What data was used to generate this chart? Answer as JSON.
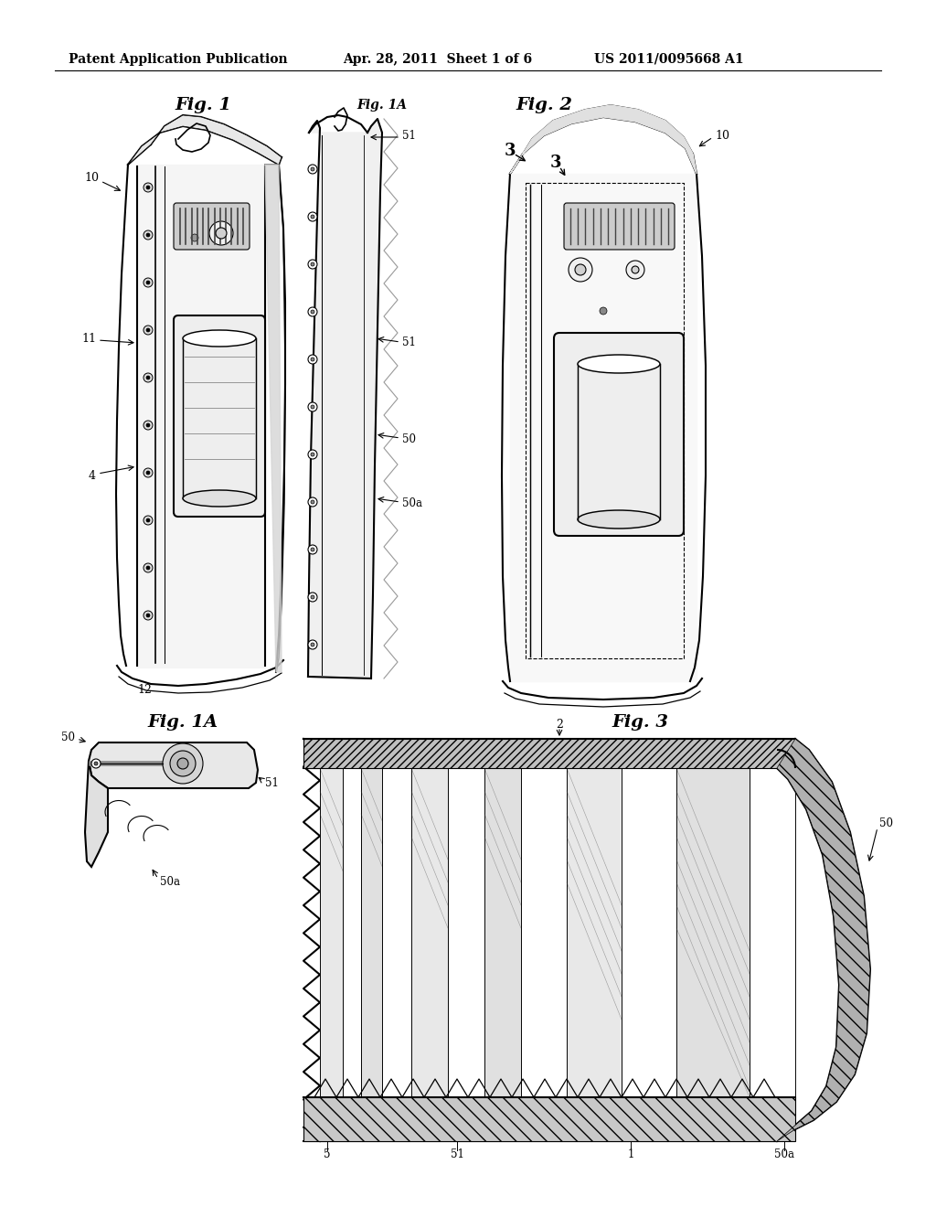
{
  "bg_color": "#ffffff",
  "header_left": "Patent Application Publication",
  "header_mid": "Apr. 28, 2011  Sheet 1 of 6",
  "header_right": "US 2011/0095668 A1",
  "fig1_title": "Fig. 1",
  "fig1a_title": "Fig. 1A",
  "fig2_title": "Fig. 2",
  "fig3_title": "Fig. 3",
  "lc": "#000000",
  "lw": 1.5
}
